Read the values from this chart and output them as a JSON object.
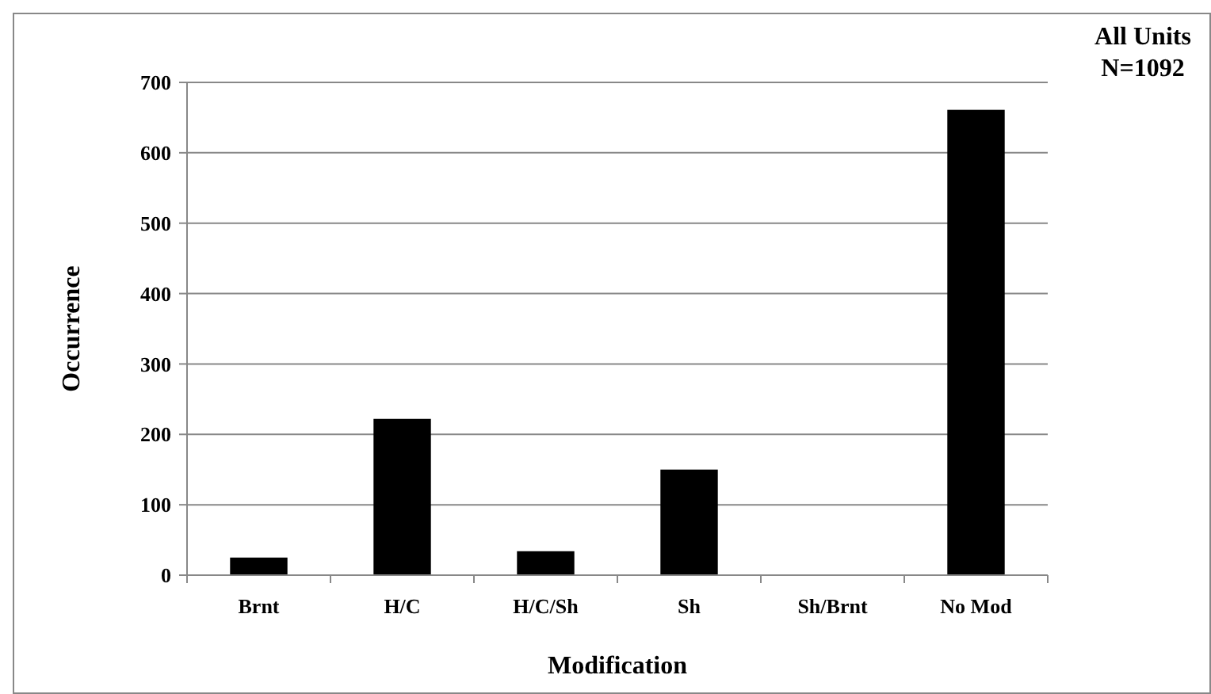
{
  "chart_data": {
    "type": "bar",
    "xlabel": "Modification",
    "ylabel": "Occurrence",
    "categories": [
      "Brnt",
      "H/C",
      "H/C/Sh",
      "Sh",
      "Sh/Brnt",
      "No Mod"
    ],
    "values": [
      25,
      222,
      34,
      150,
      0,
      661
    ],
    "color": "#000000",
    "ylim": [
      0,
      700
    ],
    "yticks": [
      0,
      100,
      200,
      300,
      400,
      500,
      600,
      700
    ],
    "grid": "y",
    "annotations": [
      "All Units",
      "N=1092"
    ]
  }
}
